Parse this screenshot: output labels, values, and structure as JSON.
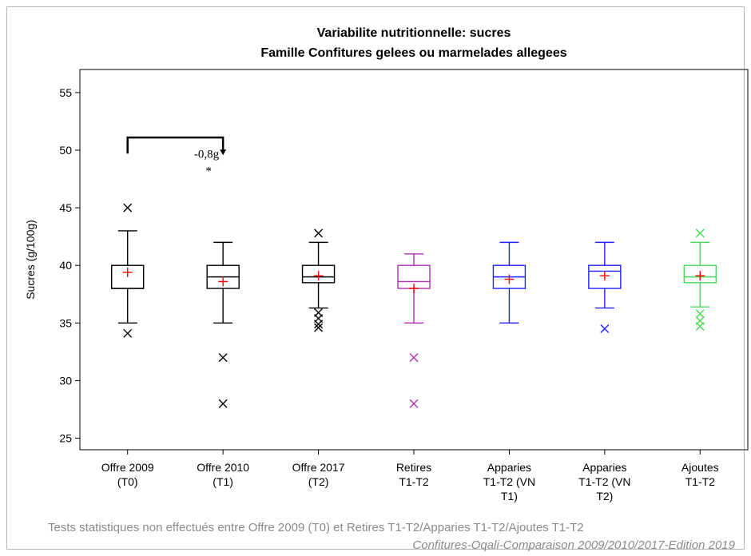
{
  "chart_data": {
    "type": "box",
    "title": [
      "Variabilite nutritionnelle: sucres",
      "Famille Confitures gelees ou marmelades allegees"
    ],
    "ylabel": "Sucres (g/100g)",
    "xlabel": "",
    "ylim": [
      24,
      57
    ],
    "yticks": [
      25,
      30,
      35,
      40,
      45,
      50,
      55
    ],
    "categories": [
      {
        "lines": [
          "Offre 2009",
          "(T0)"
        ]
      },
      {
        "lines": [
          "Offre 2010",
          "(T1)"
        ]
      },
      {
        "lines": [
          "Offre 2017",
          "(T2)"
        ]
      },
      {
        "lines": [
          "Retires",
          "T1-T2"
        ]
      },
      {
        "lines": [
          "Apparies",
          "T1-T2 (VN",
          "T1)"
        ]
      },
      {
        "lines": [
          "Apparies",
          "T1-T2 (VN",
          "T2)"
        ]
      },
      {
        "lines": [
          "Ajoutes",
          "T1-T2"
        ]
      }
    ],
    "series": [
      {
        "color": "#000000",
        "whisker_low": 35,
        "q1": 38,
        "median": 38,
        "q3": 40,
        "whisker_high": 43,
        "mean": 39.4,
        "outliers": [
          34.1,
          45
        ]
      },
      {
        "color": "#000000",
        "whisker_low": 35,
        "q1": 38,
        "median": 39,
        "q3": 40,
        "whisker_high": 42,
        "mean": 38.6,
        "outliers": [
          32,
          28
        ]
      },
      {
        "color": "#000000",
        "whisker_low": 36.3,
        "q1": 38.5,
        "median": 39,
        "q3": 40,
        "whisker_high": 42,
        "mean": 39.1,
        "outliers": [
          42.8,
          35.9,
          35.4,
          34.9,
          34.6
        ]
      },
      {
        "color": "#b02fb0",
        "whisker_low": 35,
        "q1": 38,
        "median": 38.6,
        "q3": 40,
        "whisker_high": 41,
        "mean": 38,
        "outliers": [
          32,
          28
        ]
      },
      {
        "color": "#1f1fff",
        "whisker_low": 35,
        "q1": 38,
        "median": 39,
        "q3": 40,
        "whisker_high": 42,
        "mean": 38.8,
        "outliers": []
      },
      {
        "color": "#1f1fff",
        "whisker_low": 36.3,
        "q1": 38,
        "median": 39.5,
        "q3": 40,
        "whisker_high": 42,
        "mean": 39.1,
        "outliers": [
          34.5
        ]
      },
      {
        "color": "#4cd65a",
        "whisker_low": 36.4,
        "q1": 38.5,
        "median": 39,
        "q3": 40,
        "whisker_high": 42,
        "mean": 39.1,
        "outliers": [
          42.8,
          35.8,
          35.2,
          34.7
        ]
      }
    ],
    "mean_color": "#ff0000",
    "annotation": {
      "from_category": 0,
      "to_category": 1,
      "bracket_top": 51.1,
      "bracket_bottom": 49.7,
      "label": "-0,8g",
      "significance": "*"
    }
  },
  "footnote": "Tests statistiques non effectués entre Offre 2009 (T0) et Retires T1-T2/Apparies T1-T2/Ajoutes T1-T2",
  "source": "Confitures-Oqali-Comparaison 2009/2010/2017-Edition 2019"
}
